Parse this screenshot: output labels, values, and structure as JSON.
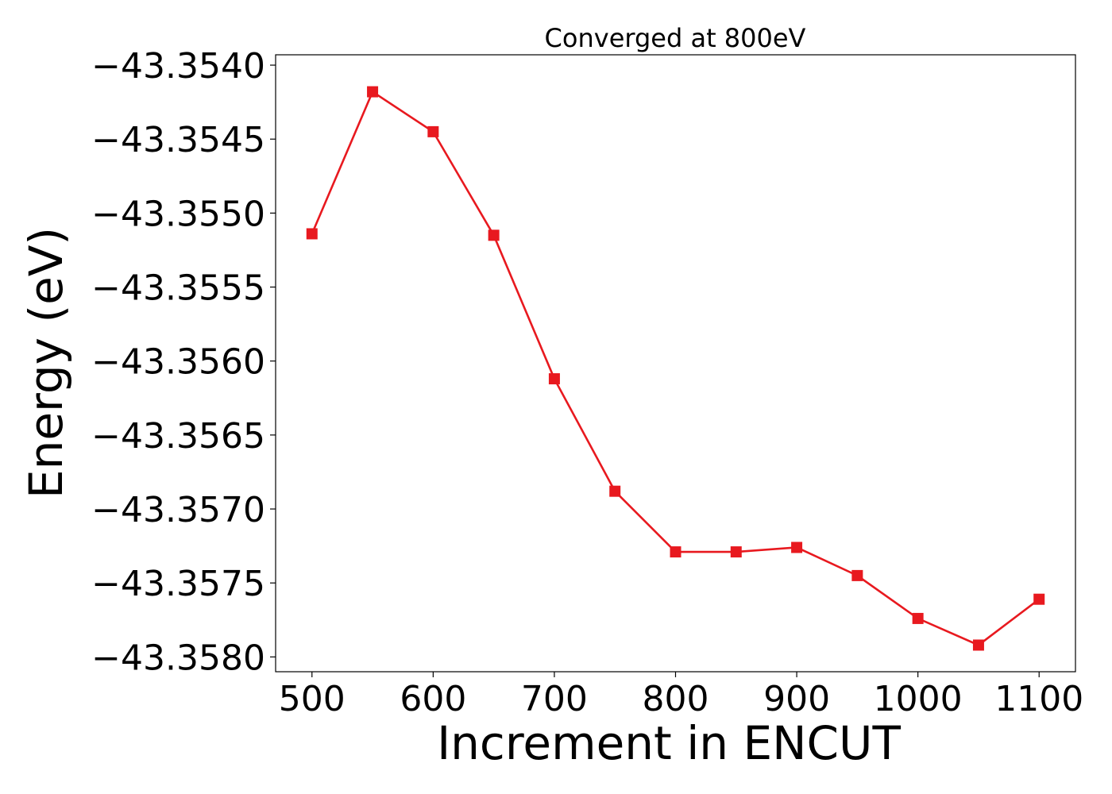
{
  "chart_data": {
    "type": "line",
    "title": "Converged at 800eV",
    "xlabel": "Increment in ENCUT",
    "ylabel": "Energy (eV)",
    "xlim": [
      470,
      1130
    ],
    "ylim": [
      -43.3581,
      -43.35393
    ],
    "x_ticks": [
      500,
      600,
      700,
      800,
      900,
      1000,
      1100
    ],
    "y_ticks": [
      -43.354,
      -43.3545,
      -43.355,
      -43.3555,
      -43.356,
      -43.3565,
      -43.357,
      -43.3575,
      -43.358
    ],
    "y_tick_labels": [
      "−43.3540",
      "−43.3545",
      "−43.3550",
      "−43.3555",
      "−43.3560",
      "−43.3565",
      "−43.3570",
      "−43.3575",
      "−43.3580"
    ],
    "grid": false,
    "series": [
      {
        "color": "#e8191f",
        "marker": "square",
        "x": [
          500,
          550,
          600,
          650,
          700,
          750,
          800,
          850,
          900,
          950,
          1000,
          1050,
          1100
        ],
        "y": [
          -43.35514,
          -43.35418,
          -43.35445,
          -43.35515,
          -43.35612,
          -43.35688,
          -43.35729,
          -43.35729,
          -43.35726,
          -43.35745,
          -43.35774,
          -43.35792,
          -43.35761
        ]
      }
    ]
  }
}
